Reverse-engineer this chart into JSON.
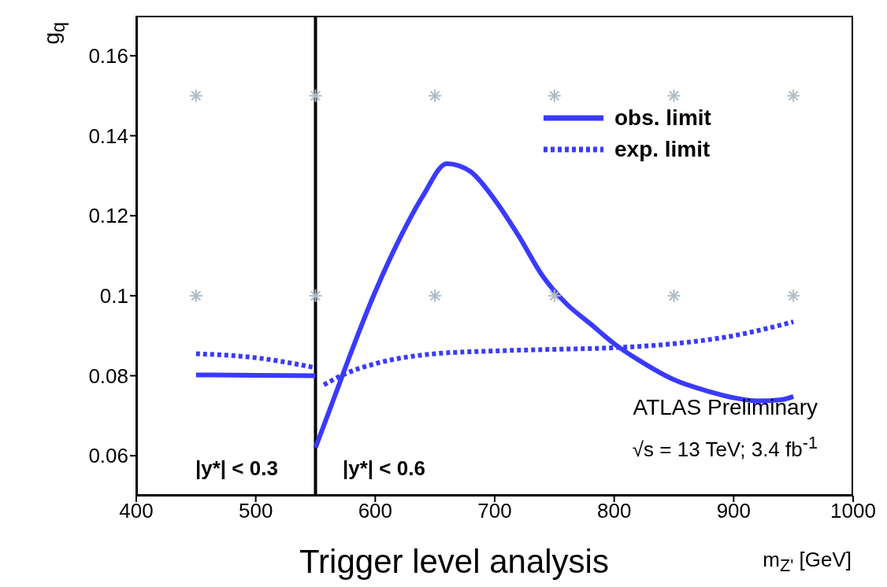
{
  "chart_data": {
    "type": "line",
    "xlabel": "m$_{Z'}$ [GeV]",
    "ylabel": "g$_{q}$",
    "xlim": [
      400,
      1000
    ],
    "xticks": [
      400,
      500,
      600,
      700,
      800,
      900,
      1000
    ],
    "ylim": [
      0.05,
      0.17
    ],
    "yticks": [
      0.06,
      0.08,
      0.1,
      0.12,
      0.14,
      0.16
    ],
    "grid": false,
    "legend": "top right",
    "marker": "none",
    "ref_lines": [
      {
        "axis": "x",
        "value": 550,
        "color": "#000000"
      }
    ],
    "annotations": [
      "|y*| < 0.3",
      "|y*| < 0.6",
      "ATLAS Preliminary",
      "√s = 13 TeV; 3.4 fb$^{-1}$",
      "Trigger level analysis"
    ],
    "series": [
      {
        "name": "obs. limit",
        "color": "#3a3aff",
        "line_style": "solid",
        "x": [
          450,
          500,
          550
        ],
        "values": [
          0.0802,
          0.0801,
          0.08
        ]
      },
      {
        "color": "#3a3aff",
        "line_style": "solid",
        "x": [
          550,
          560,
          570,
          580,
          600,
          620,
          640,
          660,
          670,
          680,
          700,
          720,
          740,
          760,
          780,
          800,
          820,
          850,
          880,
          900,
          920,
          940,
          950
        ],
        "values": [
          0.062,
          0.07,
          0.078,
          0.086,
          0.101,
          0.114,
          0.125,
          0.133,
          0.1325,
          0.131,
          0.124,
          0.115,
          0.105,
          0.098,
          0.093,
          0.088,
          0.084,
          0.079,
          0.076,
          0.0745,
          0.0737,
          0.074,
          0.0748
        ]
      },
      {
        "name": "exp. limit",
        "color": "#3a3aff",
        "line_style": "dotted",
        "x": [
          450,
          500,
          550
        ],
        "values": [
          0.0855,
          0.0845,
          0.082
        ]
      },
      {
        "color": "#3a3aff",
        "line_style": "dotted",
        "x": [
          557,
          575,
          600,
          650,
          700,
          750,
          800,
          850,
          900,
          950
        ],
        "values": [
          0.0777,
          0.0805,
          0.083,
          0.0855,
          0.0862,
          0.0866,
          0.087,
          0.088,
          0.09,
          0.0935
        ]
      },
      {
        "type": "scatter",
        "color": "#b0bcc4",
        "marker": "cross",
        "x": [
          450,
          550,
          650,
          750,
          850,
          950,
          450,
          550,
          650,
          750,
          850,
          950
        ],
        "values": [
          0.15,
          0.15,
          0.15,
          0.15,
          0.15,
          0.15,
          0.1,
          0.1,
          0.1,
          0.1,
          0.1,
          0.1
        ]
      }
    ]
  }
}
